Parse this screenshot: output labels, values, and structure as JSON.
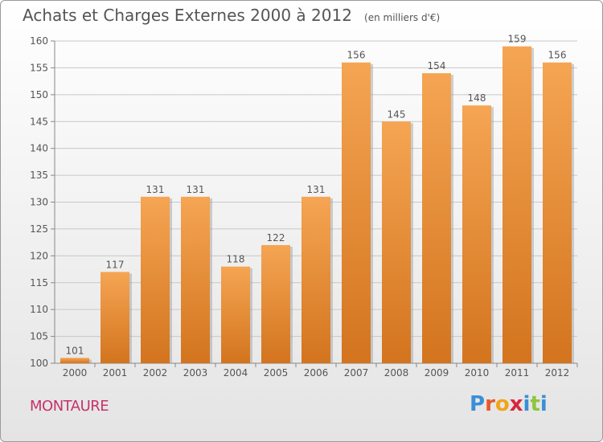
{
  "title": "Achats et Charges Externes 2000 à 2012",
  "unit_note": "(en milliers d'€)",
  "commune": "MONTAURE",
  "logo": {
    "letters": [
      "P",
      "r",
      "o",
      "x",
      "i",
      "t",
      "i"
    ],
    "colors": [
      "#3b8fd6",
      "#e8582a",
      "#f2a31b",
      "#d9263d",
      "#3b8fd6",
      "#8cc63f",
      "#3b8fd6"
    ]
  },
  "colors": {
    "bar_top": "#f5a553",
    "bar_bottom": "#d3741e",
    "text": "#555555",
    "commune": "#c5336a"
  },
  "chart_data": {
    "type": "bar",
    "title": "Achats et Charges Externes 2000 à 2012",
    "categories": [
      "2000",
      "2001",
      "2002",
      "2003",
      "2004",
      "2005",
      "2006",
      "2007",
      "2008",
      "2009",
      "2010",
      "2011",
      "2012"
    ],
    "values": [
      101,
      117,
      131,
      131,
      118,
      122,
      131,
      156,
      145,
      154,
      148,
      159,
      156
    ],
    "data_labels": [
      "101",
      "117",
      "131",
      "131",
      "118",
      "122",
      "131",
      "156",
      "145",
      "154",
      "148",
      "159",
      "156"
    ],
    "ylim": [
      100,
      160
    ],
    "yticks": [
      100,
      105,
      110,
      115,
      120,
      125,
      130,
      135,
      140,
      145,
      150,
      155,
      160
    ],
    "ytick_labels": [
      "100",
      "105",
      "110",
      "115",
      "120",
      "125",
      "130",
      "135",
      "140",
      "145",
      "150",
      "155",
      "160"
    ],
    "grid": true,
    "xlabel": "",
    "ylabel": ""
  }
}
